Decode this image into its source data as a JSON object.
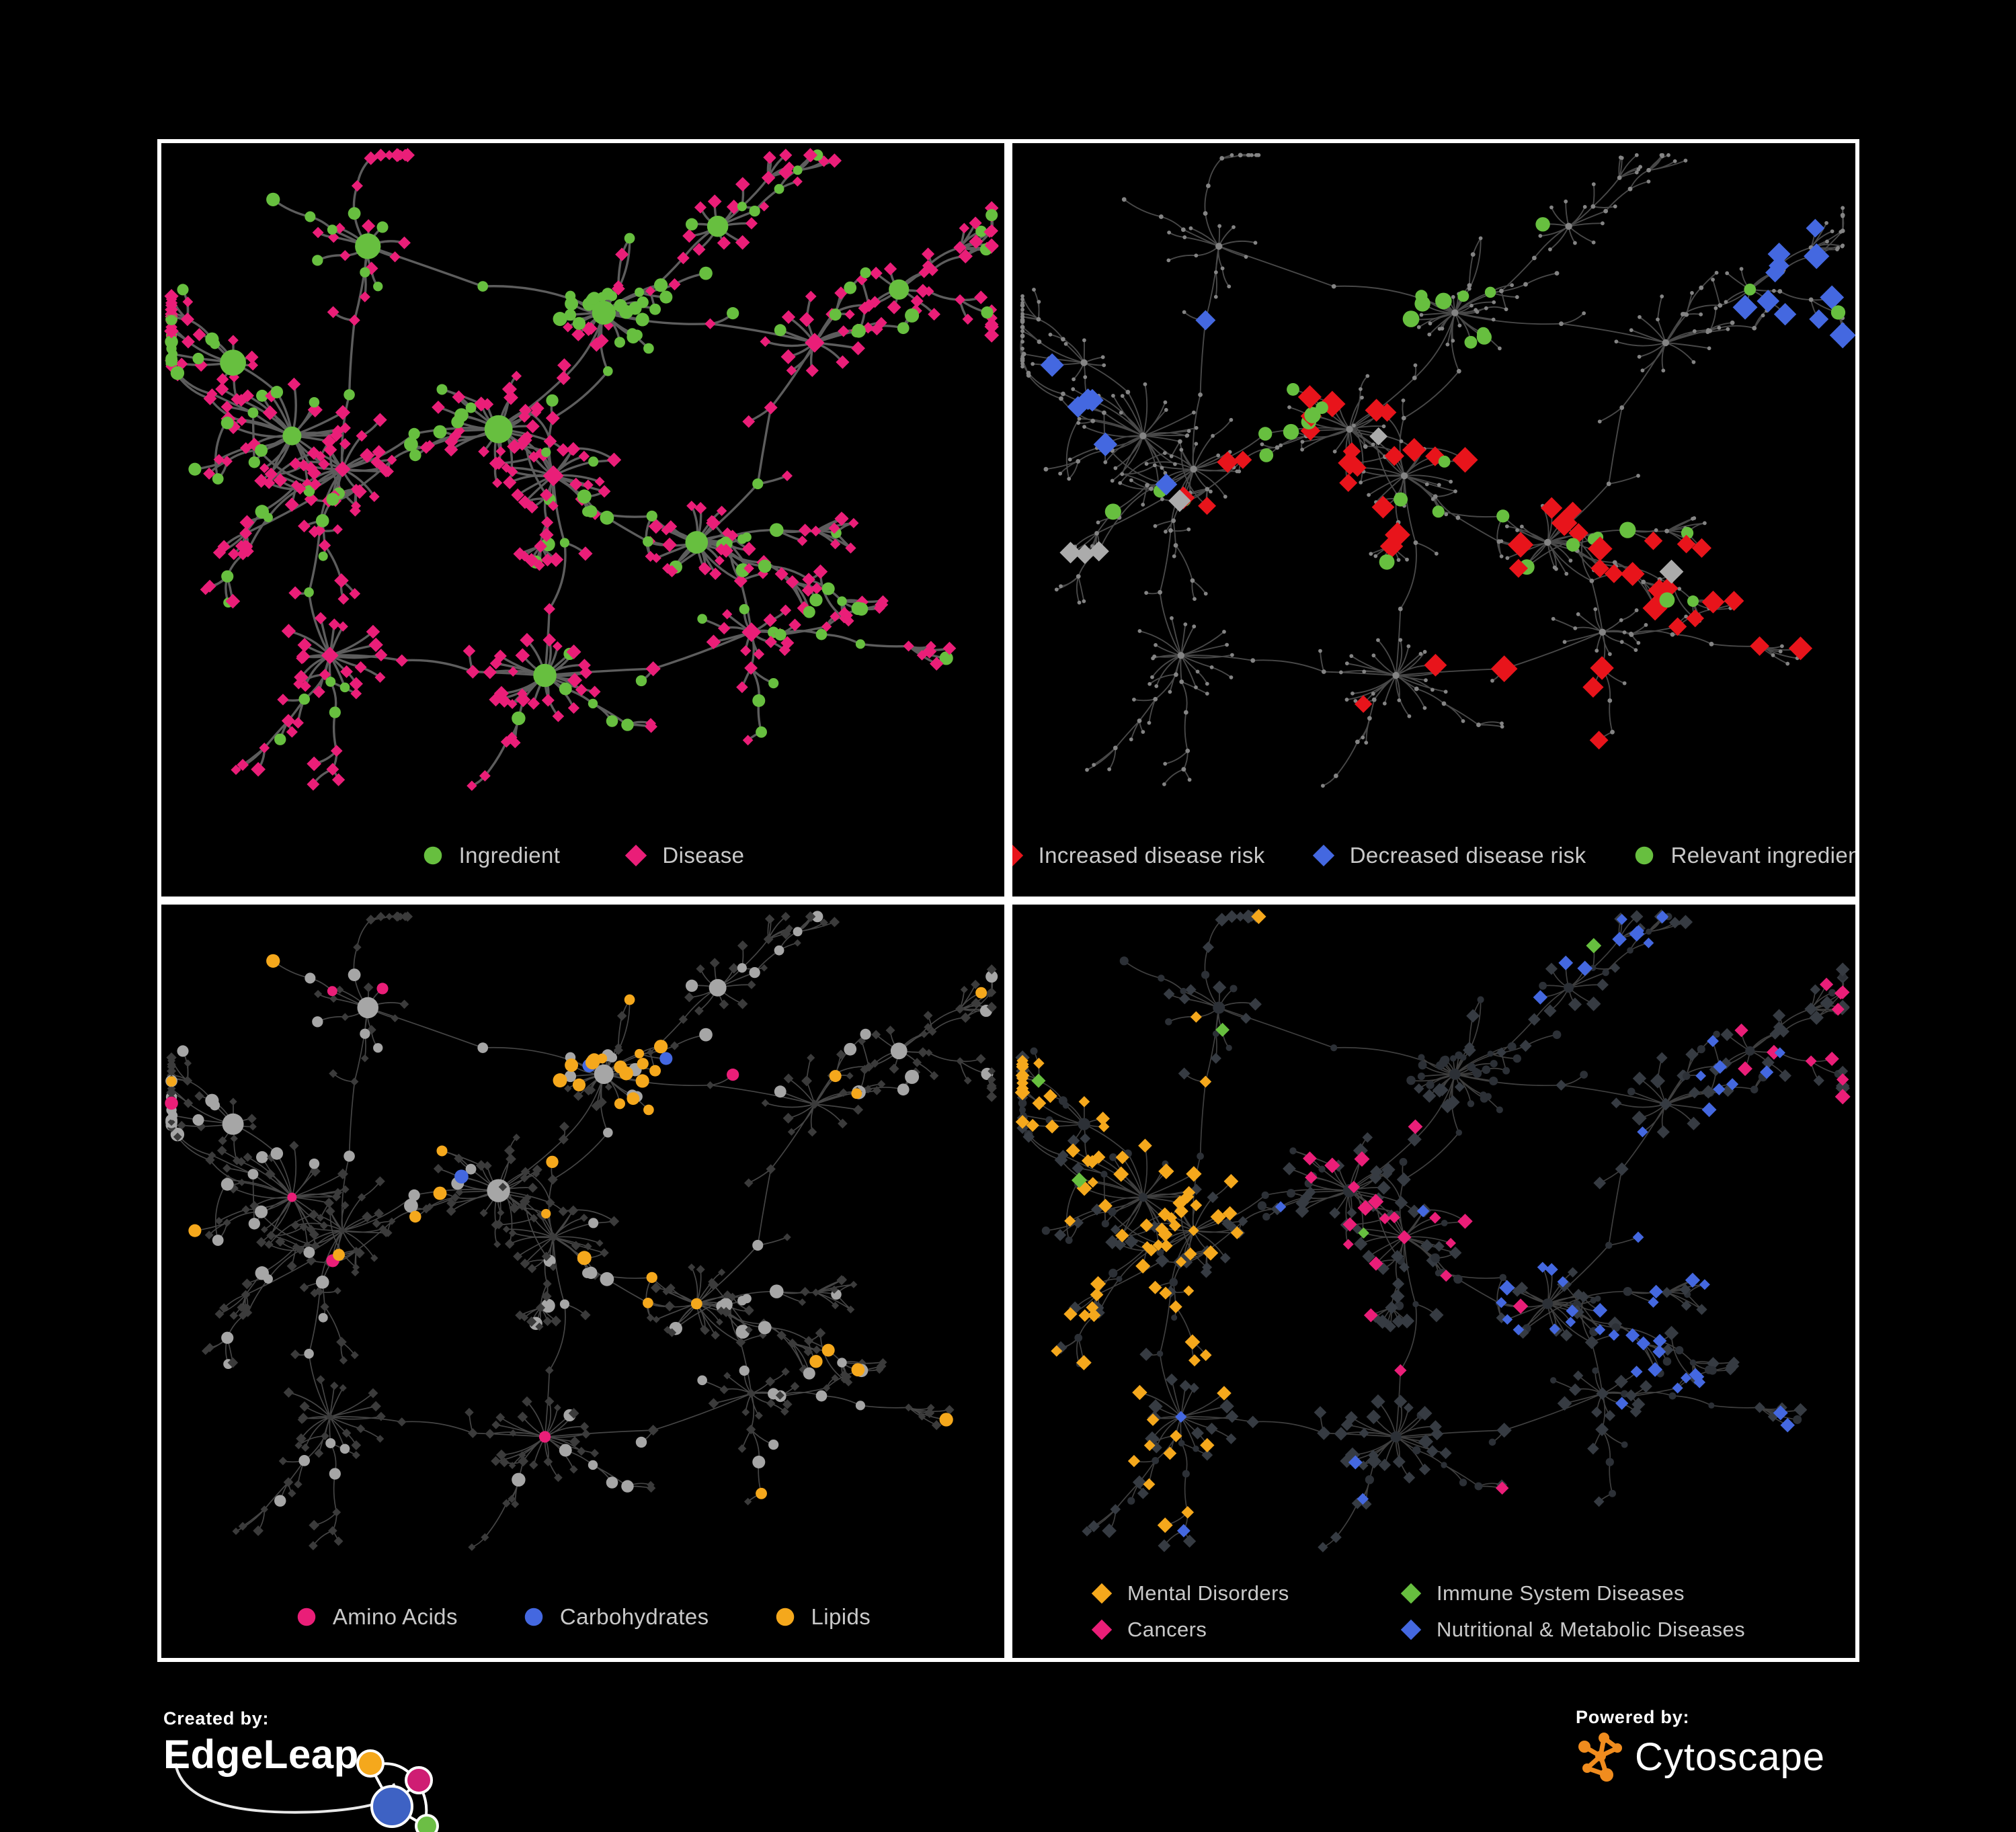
{
  "panels": [
    {
      "key": "ingredient-disease",
      "legend": [
        {
          "shape": "circle",
          "color": "#67BF3F",
          "label": "Ingredient"
        },
        {
          "shape": "diamond",
          "color": "#EA1E78",
          "label": "Disease"
        }
      ]
    },
    {
      "key": "disease-risk",
      "legend": [
        {
          "shape": "diamond",
          "color": "#E8141B",
          "label": "Increased disease risk"
        },
        {
          "shape": "diamond",
          "color": "#4468E0",
          "label": "Decreased disease risk"
        },
        {
          "shape": "circle",
          "color": "#67BF3F",
          "label": "Relevant ingredient"
        }
      ]
    },
    {
      "key": "chemical-class",
      "legend": [
        {
          "shape": "circle",
          "color": "#EA1E78",
          "label": "Amino Acids"
        },
        {
          "shape": "circle",
          "color": "#4468E0",
          "label": "Carbohydrates"
        },
        {
          "shape": "circle",
          "color": "#F5A81C",
          "label": "Lipids"
        }
      ]
    },
    {
      "key": "disease-class",
      "legend": [
        {
          "shape": "diamond",
          "color": "#F5A81C",
          "label": "Mental Disorders"
        },
        {
          "shape": "diamond",
          "color": "#67BF3F",
          "label": "Immune System Diseases"
        },
        {
          "shape": "diamond",
          "color": "#EA1E78",
          "label": "Cancers"
        },
        {
          "shape": "diamond",
          "color": "#4468E0",
          "label": "Nutritional & Metabolic Diseases"
        }
      ]
    }
  ],
  "footer": {
    "created_by_label": "Created by:",
    "created_by_brand": "EdgeLeap",
    "powered_by_label": "Powered by:",
    "powered_by_brand": "Cytoscape",
    "edgeleap_colors": {
      "blue": "#3E62C4",
      "yellow": "#F5A81C",
      "pink": "#CF1D73",
      "green": "#6CBE45"
    },
    "cytoscape_orange": "#F08C1E"
  },
  "chart_data": {
    "type": "network",
    "description": "Four views of one ingredient-disease association network rendered by Cytoscape",
    "views": [
      {
        "key": "ingredient-disease",
        "mode": "type",
        "style": {
          "edge": {
            "color": "#6E6E6E",
            "w": 3.4,
            "op": 0.85
          },
          "ing": {
            "color": "#67BF3F",
            "r": 8.5,
            "rHub": 17
          },
          "dis": {
            "color": "#EA1E78",
            "s": 9,
            "sHub": 14
          }
        }
      },
      {
        "key": "disease-risk",
        "mode": "dim",
        "style": {
          "edge": {
            "color": "#5A5A5A",
            "w": 1.9,
            "op": 0.8
          },
          "base": {
            "color": "#848484",
            "r": 3.4,
            "rHub": 5.2
          },
          "highlights": [
            {
              "key": "increased-risk",
              "shape": "diamond",
              "color": "#E8141B",
              "size": 16,
              "type": "dis",
              "rules": [
                {
                  "regions": [
                    2,
                    3
                  ],
                  "p": 0.3
                },
                {
                  "regions": [
                    5
                  ],
                  "p": 0.4
                },
                {
                  "regions": [
                    13
                  ],
                  "p": 0.3
                },
                {
                  "regions": [
                    8
                  ],
                  "p": 0.08
                },
                {
                  "regions": [
                    6
                  ],
                  "p": 0.05
                }
              ]
            },
            {
              "key": "decreased-risk",
              "shape": "diamond",
              "color": "#4468E0",
              "size": 16,
              "type": "dis",
              "rules": [
                {
                  "regions": [
                    0,
                    1,
                    12
                  ],
                  "p": 0.11
                },
                {
                  "regions": [
                    11
                  ],
                  "p": 0.35
                }
              ]
            },
            {
              "key": "no-effect",
              "shape": "diamond",
              "color": "#ABABAB",
              "size": 15,
              "type": "dis",
              "rules": [
                {
                  "regions": [
                    1,
                    2,
                    3,
                    5
                  ],
                  "p": 0.07
                }
              ]
            },
            {
              "key": "relevant-ingredient",
              "shape": "circle",
              "color": "#67BF3F",
              "size": 10,
              "type": "ing",
              "rules": [
                {
                  "regions": [
                    1,
                    2,
                    3,
                    4,
                    5
                  ],
                  "p": 0.3
                },
                {
                  "regions": [
                    11
                  ],
                  "p": 0.4
                },
                {
                  "regions": "*",
                  "p": 0.04
                }
              ]
            }
          ]
        }
      },
      {
        "key": "chemical-class",
        "mode": "class-ing",
        "style": {
          "edge": {
            "color": "#8A8A8A",
            "w": 1.7,
            "op": 0.5
          },
          "disBase": {
            "color": "#3B3B3B",
            "s": 6.5
          },
          "ingBase": {
            "color": "#A6A6A6",
            "r": 8.5,
            "rHub": 14
          },
          "classes": [
            {
              "key": "lipids",
              "color": "#F5A81C",
              "rules": [
                {
                  "regions": [
                    4
                  ],
                  "p": 0.52
                },
                {
                  "regions": [
                    2,
                    3,
                    5
                  ],
                  "p": 0.2
                },
                {
                  "regions": [
                    8,
                    10,
                    13
                  ],
                  "p": 0.12
                },
                {
                  "regions": "*",
                  "p": 0.05
                }
              ]
            },
            {
              "key": "carbohydrates",
              "color": "#4468E0",
              "rules": [
                {
                  "regions": [
                    4
                  ],
                  "p": 0.16
                },
                {
                  "regions": "*",
                  "p": 0.02
                }
              ]
            },
            {
              "key": "amino-acids",
              "color": "#EA1E78",
              "rules": [
                {
                  "regions": [
                    0,
                    6,
                    7,
                    9,
                    12
                  ],
                  "p": 0.1
                },
                {
                  "regions": "*",
                  "p": 0.03
                }
              ]
            }
          ]
        }
      },
      {
        "key": "disease-class",
        "mode": "class-dis",
        "style": {
          "edge": {
            "color": "#4F4F4F",
            "w": 1.7,
            "op": 0.8
          },
          "ingBase": {
            "color": "#2C3036",
            "r": 5.5,
            "rHub": 8
          },
          "disBase": {
            "color": "#363B42",
            "s": 9
          },
          "classes": [
            {
              "key": "mental-disorders",
              "color": "#F5A81C",
              "rules": [
                {
                  "regions": [
                    0,
                    1,
                    12
                  ],
                  "p": 0.7
                },
                {
                  "regions": [
                    7,
                    9
                  ],
                  "p": 0.22
                }
              ]
            },
            {
              "key": "cancers",
              "color": "#EA1E78",
              "rules": [
                {
                  "regions": [
                    2,
                    3
                  ],
                  "p": 0.34
                },
                {
                  "regions": [
                    11
                  ],
                  "p": 0.4
                },
                {
                  "regions": [
                    6
                  ],
                  "p": 0.08
                }
              ]
            },
            {
              "key": "nutritional-metabolic",
              "color": "#4468E0",
              "rules": [
                {
                  "regions": [
                    5
                  ],
                  "p": 0.65
                },
                {
                  "regions": [
                    8,
                    10,
                    13
                  ],
                  "p": 0.3
                },
                {
                  "regions": "*",
                  "p": 0.05
                }
              ]
            },
            {
              "key": "immune-system",
              "color": "#67BF3F",
              "rules": [
                {
                  "regions": "*",
                  "p": 0.02
                }
              ]
            }
          ]
        }
      }
    ],
    "layout": {
      "seed": 7,
      "cross_links": 46,
      "anchors": [
        {
          "x": 0.155,
          "y": 0.44,
          "leaves": 26,
          "rMin": 0.045,
          "rMax": 0.085
        },
        {
          "x": 0.215,
          "y": 0.49,
          "leaves": 16,
          "rMin": 0.03,
          "rMax": 0.06
        },
        {
          "x": 0.4,
          "y": 0.43,
          "leaves": 22,
          "rMin": 0.035,
          "rMax": 0.07
        },
        {
          "x": 0.465,
          "y": 0.5,
          "leaves": 18,
          "rMin": 0.03,
          "rMax": 0.06
        },
        {
          "x": 0.525,
          "y": 0.255,
          "leaves": 30,
          "rMin": 0.02,
          "rMax": 0.055
        },
        {
          "x": 0.635,
          "y": 0.6,
          "leaves": 20,
          "rMin": 0.03,
          "rMax": 0.06
        },
        {
          "x": 0.455,
          "y": 0.8,
          "leaves": 22,
          "rMin": 0.035,
          "rMax": 0.075
        },
        {
          "x": 0.2,
          "y": 0.77,
          "leaves": 16,
          "rMin": 0.03,
          "rMax": 0.065
        },
        {
          "x": 0.775,
          "y": 0.3,
          "leaves": 12,
          "rMin": 0.03,
          "rMax": 0.06
        },
        {
          "x": 0.245,
          "y": 0.155,
          "leaves": 9,
          "rMin": 0.025,
          "rMax": 0.05
        },
        {
          "x": 0.66,
          "y": 0.125,
          "leaves": 9,
          "rMin": 0.025,
          "rMax": 0.05
        },
        {
          "x": 0.875,
          "y": 0.22,
          "leaves": 7,
          "rMin": 0.025,
          "rMax": 0.05
        },
        {
          "x": 0.085,
          "y": 0.33,
          "leaves": 7,
          "rMin": 0.02,
          "rMax": 0.045
        },
        {
          "x": 0.7,
          "y": 0.735,
          "leaves": 9,
          "rMin": 0.025,
          "rMax": 0.05
        }
      ],
      "backbone": [
        [
          0,
          1
        ],
        [
          1,
          2
        ],
        [
          2,
          3
        ],
        [
          3,
          4
        ],
        [
          4,
          10
        ],
        [
          3,
          5
        ],
        [
          5,
          13
        ],
        [
          6,
          3
        ],
        [
          7,
          1
        ],
        [
          8,
          4
        ],
        [
          8,
          11
        ],
        [
          9,
          1
        ],
        [
          9,
          4
        ],
        [
          12,
          0
        ],
        [
          5,
          8
        ],
        [
          6,
          7
        ],
        [
          2,
          4
        ],
        [
          13,
          6
        ]
      ],
      "type_rules": {
        "hub_ing_p": 0.6,
        "leaf_dis_p": 0.85,
        "chain_ing_p": 0.45,
        "cluster_ing_anchor": 4,
        "cluster_ing_p": 0.85,
        "star_anchors": [
          6,
          7
        ],
        "star_dis_p": 0.95,
        "forced_ing_hubs": [
          5,
          11
        ]
      }
    }
  }
}
